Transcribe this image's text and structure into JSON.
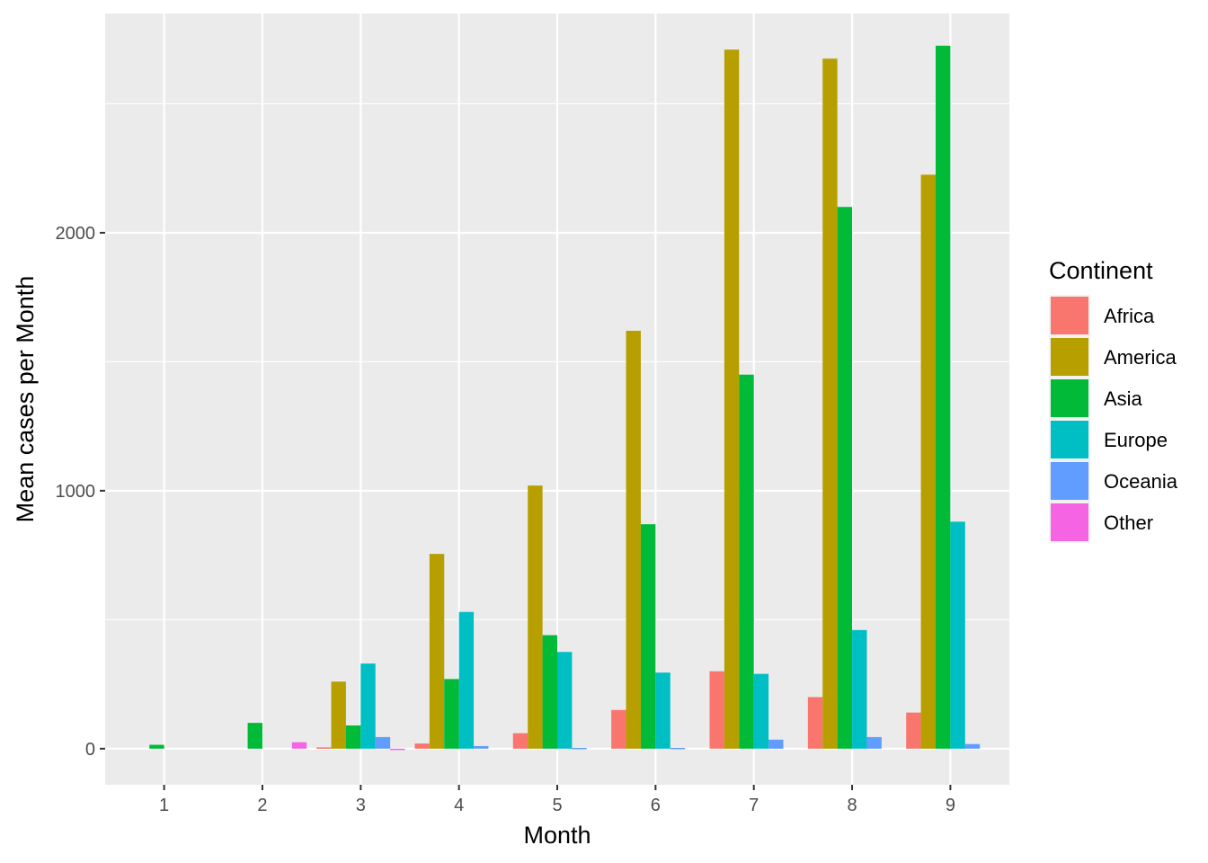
{
  "chart_data": {
    "type": "bar",
    "title": "",
    "xlabel": "Month",
    "ylabel": "Mean cases per Month",
    "categories": [
      "1",
      "2",
      "3",
      "4",
      "5",
      "6",
      "7",
      "8",
      "9"
    ],
    "ylim": [
      -140,
      2850
    ],
    "yticks": [
      0,
      1000,
      2000
    ],
    "grid": true,
    "legend": {
      "title": "Continent",
      "position": "right"
    },
    "series": [
      {
        "name": "Africa",
        "color": "#F8766D",
        "values": [
          null,
          null,
          5,
          20,
          60,
          150,
          300,
          200,
          140
        ]
      },
      {
        "name": "America",
        "color": "#B79F00",
        "values": [
          null,
          null,
          260,
          755,
          1020,
          1620,
          2710,
          2675,
          2225
        ]
      },
      {
        "name": "Asia",
        "color": "#00BA38",
        "values": [
          15,
          100,
          90,
          270,
          440,
          870,
          1450,
          2100,
          2725
        ]
      },
      {
        "name": "Europe",
        "color": "#00BFC4",
        "values": [
          null,
          null,
          330,
          530,
          375,
          295,
          290,
          460,
          880
        ]
      },
      {
        "name": "Oceania",
        "color": "#619CFF",
        "values": [
          null,
          null,
          45,
          10,
          3,
          3,
          35,
          45,
          18
        ]
      },
      {
        "name": "Other",
        "color": "#F564E3",
        "values": [
          null,
          25,
          -5,
          null,
          null,
          null,
          null,
          null,
          null
        ]
      }
    ]
  }
}
